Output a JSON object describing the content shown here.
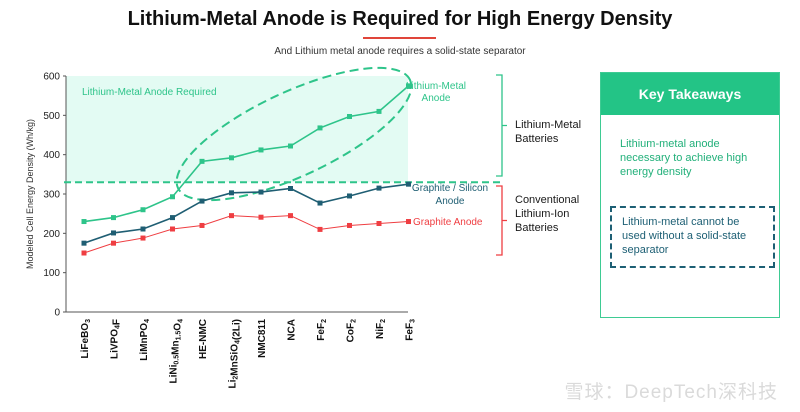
{
  "title": "Lithium-Metal Anode is Required for High Energy Density",
  "subtitle": "And Lithium metal anode requires a solid-state separator",
  "chart_data": {
    "type": "line",
    "title": "Lithium-Metal Anode is Required for High Energy Density",
    "ylabel": "Modeled Cell Energy Density (Wh/kg)",
    "xlabel": "",
    "ylim": [
      0,
      600
    ],
    "yticks": [
      0,
      100,
      200,
      300,
      400,
      500,
      600
    ],
    "grid": false,
    "categories": [
      "LiFeBO3",
      "LiVPO4F",
      "LiMnPO4",
      "LiNi0.5Mn1.5O4",
      "HE-NMC",
      "Li2MnSiO4(2Li)",
      "NMC811",
      "NCA",
      "FeF2",
      "CoF2",
      "NiF2",
      "FeF3"
    ],
    "category_labels": [
      [
        {
          "t": "LiFeBO"
        },
        {
          "t": "3",
          "sub": true
        }
      ],
      [
        {
          "t": "LiVPO"
        },
        {
          "t": "4",
          "sub": true
        },
        {
          "t": "F"
        }
      ],
      [
        {
          "t": "LiMnPO"
        },
        {
          "t": "4",
          "sub": true
        }
      ],
      [
        {
          "t": "LiNi"
        },
        {
          "t": "0.5",
          "sub": true
        },
        {
          "t": "Mn"
        },
        {
          "t": "1.5",
          "sub": true
        },
        {
          "t": "O"
        },
        {
          "t": "4",
          "sub": true
        }
      ],
      [
        {
          "t": "HE-NMC"
        }
      ],
      [
        {
          "t": "Li"
        },
        {
          "t": "2",
          "sub": true
        },
        {
          "t": "MnSiO"
        },
        {
          "t": "4",
          "sub": true
        },
        {
          "t": "(2Li)"
        }
      ],
      [
        {
          "t": "NMC811"
        }
      ],
      [
        {
          "t": "NCA"
        }
      ],
      [
        {
          "t": "FeF"
        },
        {
          "t": "2",
          "sub": true
        }
      ],
      [
        {
          "t": "CoF"
        },
        {
          "t": "2",
          "sub": true
        }
      ],
      [
        {
          "t": "NiF"
        },
        {
          "t": "2",
          "sub": true
        }
      ],
      [
        {
          "t": "FeF"
        },
        {
          "t": "3",
          "sub": true
        }
      ]
    ],
    "series": [
      {
        "name": "Lithium-Metal Anode",
        "color": "#2ec48a",
        "values": [
          230,
          240,
          260,
          293,
          383,
          392,
          412,
          422,
          468,
          497,
          510,
          575
        ]
      },
      {
        "name": "Graphite / Silicon Anode",
        "color": "#1f5e73",
        "values": [
          175,
          201,
          211,
          240,
          282,
          303,
          305,
          314,
          277,
          295,
          315,
          325
        ]
      },
      {
        "name": "Graphite Anode",
        "color": "#ef3e42",
        "values": [
          150,
          175,
          188,
          211,
          220,
          245,
          241,
          245,
          210,
          220,
          225,
          230
        ]
      }
    ],
    "threshold": 330,
    "region_label": "Lithium-Metal Anode Required",
    "annotations": {
      "li_metal_batteries": "Lithium-Metal Batteries",
      "conventional_batteries": "Conventional Lithium-Ion Batteries"
    }
  },
  "takeaways": {
    "header": "Key Takeaways",
    "item1": "Lithium-metal anode necessary to achieve high energy density",
    "item2": "Lithium-metal cannot be used without a solid-state separator"
  },
  "watermark": "雪球：DeepTech深科技",
  "colors": {
    "accent_green": "#23c486",
    "dark_teal": "#1f5e73",
    "red": "#ef3e42",
    "region_fill": "#e3fbf3"
  }
}
